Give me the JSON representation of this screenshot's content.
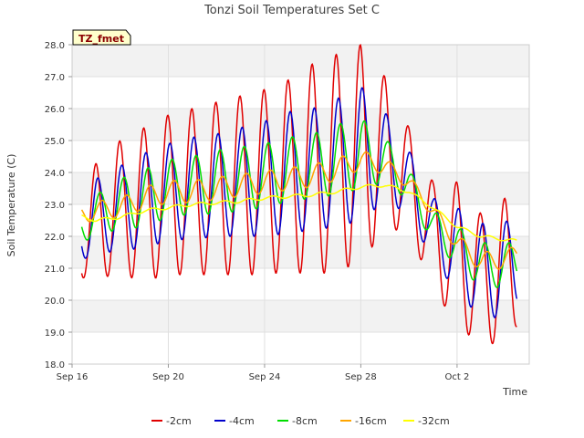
{
  "chart_data": {
    "type": "line",
    "title": "Tonzi Soil Temperatures Set C",
    "xlabel": "Time",
    "ylabel": "Soil Temperature (C)",
    "tag": "TZ_fmet",
    "x_unit": "days",
    "x_start_date": "Sep 16",
    "xlim": [
      0,
      19
    ],
    "ylim": [
      18.0,
      28.0
    ],
    "y_ticks": [
      "18.0",
      "19.0",
      "20.0",
      "21.0",
      "22.0",
      "23.0",
      "24.0",
      "25.0",
      "26.0",
      "27.0",
      "28.0"
    ],
    "x_ticks": [
      {
        "label": "Sep 16",
        "day": 0
      },
      {
        "label": "Sep 20",
        "day": 4
      },
      {
        "label": "Sep 24",
        "day": 8
      },
      {
        "label": "Sep 28",
        "day": 12
      },
      {
        "label": "Oct 2",
        "day": 16
      }
    ],
    "grid": true,
    "banded_background": true,
    "legend_position": "bottom",
    "series": [
      {
        "name": "-2cm",
        "color": "#e00000",
        "mean": [
          21.7,
          22.5,
          22.9,
          23.0,
          23.3,
          23.4,
          23.5,
          23.6,
          23.7,
          23.9,
          24.1,
          24.3,
          24.6,
          24.6,
          23.8,
          22.0,
          21.5,
          20.6,
          21.0,
          21.1
        ],
        "amp": [
          1.0,
          1.8,
          2.1,
          2.4,
          2.5,
          2.6,
          2.7,
          2.8,
          2.9,
          3.0,
          3.3,
          3.4,
          3.4,
          2.4,
          1.6,
          1.7,
          2.2,
          2.1,
          2.2,
          1.5
        ]
      },
      {
        "name": "-4cm",
        "color": "#0000cc",
        "mean": [
          21.8,
          22.6,
          22.9,
          23.1,
          23.4,
          23.5,
          23.6,
          23.7,
          23.8,
          24.0,
          24.1,
          24.3,
          24.6,
          24.5,
          23.7,
          22.2,
          21.6,
          20.9,
          21.0,
          21.2
        ],
        "amp": [
          0.6,
          1.2,
          1.3,
          1.5,
          1.5,
          1.6,
          1.6,
          1.7,
          1.8,
          1.9,
          1.9,
          2.0,
          2.1,
          1.4,
          1.0,
          1.0,
          1.3,
          1.5,
          1.5,
          0.9
        ]
      },
      {
        "name": "-8cm",
        "color": "#00dd00",
        "mean": [
          22.0,
          22.7,
          23.0,
          23.2,
          23.5,
          23.6,
          23.7,
          23.8,
          23.9,
          24.1,
          24.2,
          24.4,
          24.6,
          24.4,
          23.6,
          22.3,
          21.7,
          21.1,
          21.1,
          21.3
        ],
        "amp": [
          0.5,
          0.6,
          0.8,
          0.9,
          0.9,
          0.9,
          1.0,
          1.0,
          1.0,
          1.0,
          1.0,
          1.1,
          1.1,
          0.7,
          0.5,
          0.5,
          0.6,
          0.7,
          0.7,
          0.5
        ]
      },
      {
        "name": "-16cm",
        "color": "#ffa500",
        "mean": [
          22.6,
          22.8,
          22.9,
          23.2,
          23.4,
          23.4,
          23.5,
          23.6,
          23.7,
          23.8,
          23.9,
          24.1,
          24.4,
          24.2,
          23.7,
          22.8,
          21.8,
          21.2,
          21.3,
          21.6
        ],
        "amp": [
          0.25,
          0.3,
          0.3,
          0.35,
          0.35,
          0.35,
          0.35,
          0.35,
          0.35,
          0.35,
          0.35,
          0.35,
          0.3,
          0.25,
          0.2,
          0.2,
          0.25,
          0.3,
          0.3,
          0.2
        ]
      },
      {
        "name": "-32cm",
        "color": "#ffff00",
        "mean": [
          22.7,
          22.5,
          22.6,
          22.8,
          22.9,
          23.0,
          23.05,
          23.1,
          23.2,
          23.25,
          23.3,
          23.4,
          23.55,
          23.6,
          23.4,
          22.9,
          22.3,
          22.0,
          21.9,
          21.8
        ],
        "amp": [
          0.05,
          0.05,
          0.05,
          0.05,
          0.05,
          0.05,
          0.05,
          0.05,
          0.05,
          0.05,
          0.05,
          0.05,
          0.05,
          0.05,
          0.05,
          0.05,
          0.05,
          0.05,
          0.05,
          0.05
        ]
      }
    ]
  }
}
